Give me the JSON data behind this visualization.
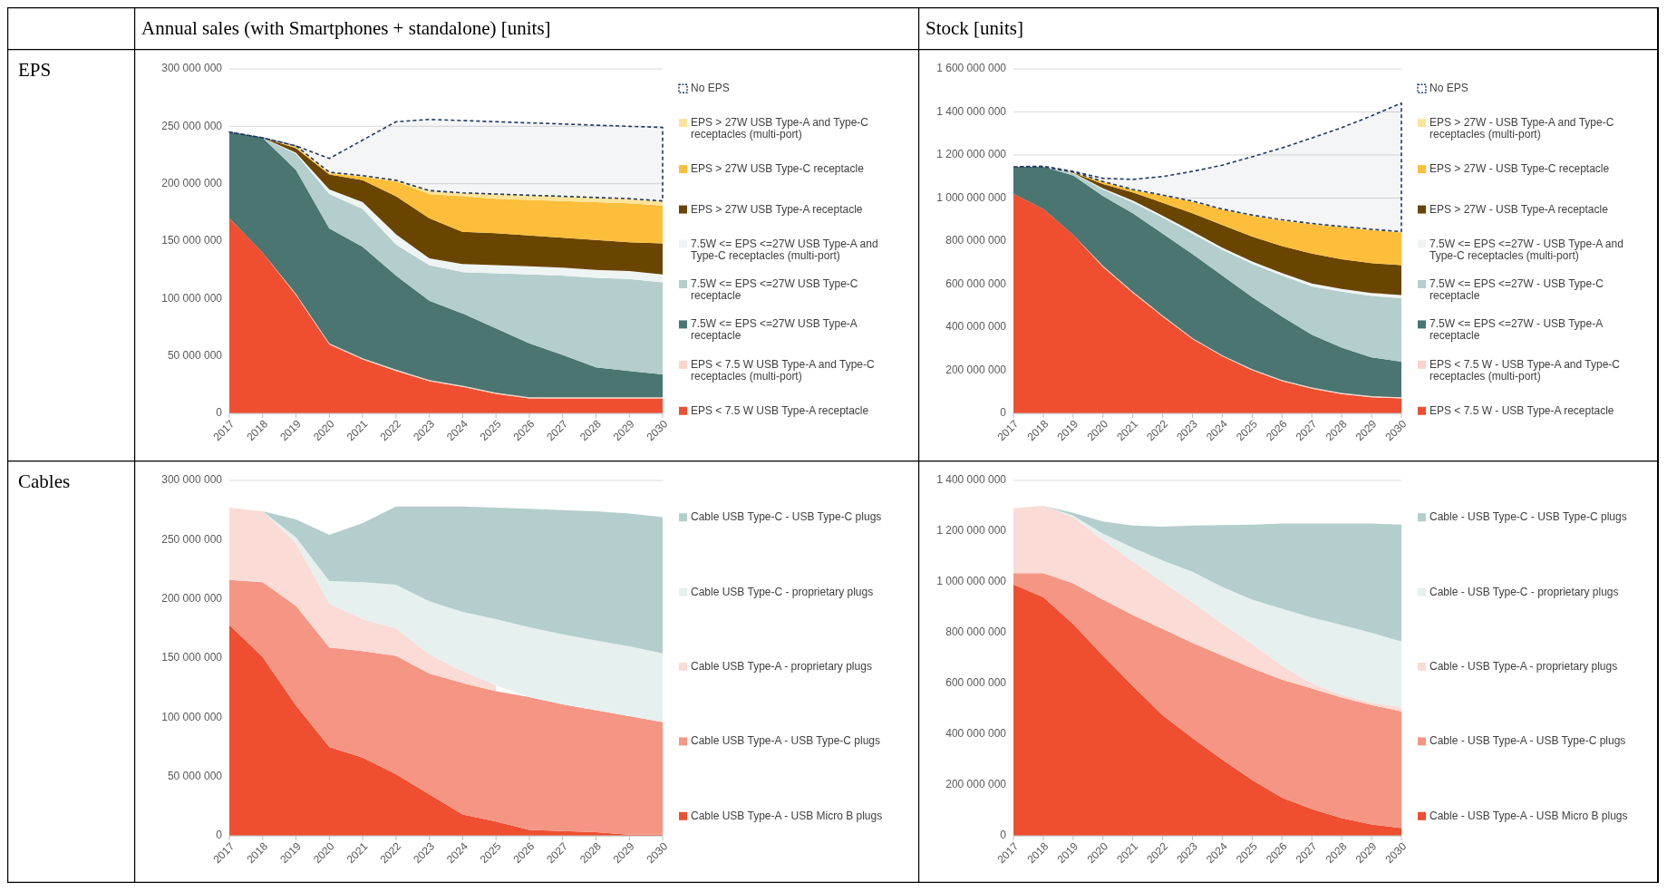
{
  "chart_data": [
    {
      "type": "area",
      "stacked": true,
      "title": "Annual sales (with Smartphones + standalone) [units]",
      "subtitle": "EPS",
      "categories": [
        "2017",
        "2018",
        "2019",
        "2020",
        "2021",
        "2022",
        "2023",
        "2024",
        "2025",
        "2026",
        "2027",
        "2028",
        "2029",
        "2030"
      ],
      "ylim": [
        0,
        300000000.0
      ],
      "yticks": [
        {
          "value": 0,
          "label": "0"
        },
        {
          "value": 50000000.0,
          "label": "50 000 000"
        },
        {
          "value": 100000000.0,
          "label": "100 000 000"
        },
        {
          "value": 150000000.0,
          "label": "150 000 000"
        },
        {
          "value": 200000000.0,
          "label": "200 000 000"
        },
        {
          "value": 250000000.0,
          "label": "250 000 000"
        },
        {
          "value": 300000000.0,
          "label": "300 000 000"
        }
      ],
      "grid": "y",
      "legend": "right",
      "series": [
        {
          "name": "EPS < 7.5 W USB Type-A receptacle",
          "color": "#ef4f30",
          "values": [
            170000000.0,
            140000000.0,
            103000000.0,
            60000000.0,
            47000000.0,
            37000000.0,
            28000000.0,
            23000000.0,
            17000000.0,
            13000000.0,
            13000000.0,
            13000000.0,
            13000000.0,
            13000000.0
          ]
        },
        {
          "name": "EPS < 7.5 W USB Type-A and Type-C receptacles (multi-port)",
          "color": "#fbd3cb",
          "values": [
            0,
            0,
            1000000.0,
            1000000.0,
            1000000.0,
            1000000.0,
            1000000.0,
            1000000.0,
            1000000.0,
            1000000.0,
            1000000.0,
            1000000.0,
            1000000.0,
            1000000.0
          ]
        },
        {
          "name": "7.5W <= EPS <=27W USB Type-A receptacle",
          "color": "#4a7571",
          "values": [
            75000000.0,
            100000000.0,
            108000000.0,
            100000000.0,
            97000000.0,
            82000000.0,
            69000000.0,
            63000000.0,
            56000000.0,
            47000000.0,
            37000000.0,
            26000000.0,
            23000000.0,
            20000000.0
          ]
        },
        {
          "name": "7.5W <= EPS <=27W USB Type-C receptacle",
          "color": "#b3cecc",
          "values": [
            0,
            0,
            14000000.0,
            30000000.0,
            33000000.0,
            27000000.0,
            31000000.0,
            36000000.0,
            48000000.0,
            60000000.0,
            69000000.0,
            78000000.0,
            80000000.0,
            80000000.0
          ]
        },
        {
          "name": "7.5W <= EPS <=27W USB Type-A and Type-C receptacles (multi-port)",
          "color": "#eef4f3",
          "values": [
            0,
            0,
            1000000.0,
            4000000.0,
            6000000.0,
            9000000.0,
            6000000.0,
            7000000.0,
            7000000.0,
            7000000.0,
            7000000.0,
            7000000.0,
            7000000.0,
            7000000.0
          ]
        },
        {
          "name": "EPS > 27W USB Type-A receptacle",
          "color": "#6a4500",
          "values": [
            0,
            0,
            4000000.0,
            13000000.0,
            19000000.0,
            33000000.0,
            35000000.0,
            28000000.0,
            28000000.0,
            27000000.0,
            26000000.0,
            26000000.0,
            25000000.0,
            27000000.0
          ]
        },
        {
          "name": "EPS > 27W USB Type-C receptacle",
          "color": "#fdbe3b",
          "values": [
            0,
            0,
            1000000.0,
            1000000.0,
            3000000.0,
            13000000.0,
            21000000.0,
            31000000.0,
            30000000.0,
            31000000.0,
            32000000.0,
            33000000.0,
            34000000.0,
            33000000.0
          ]
        },
        {
          "name": "EPS > 27W USB Type-A and Type-C receptacles (multi-port)",
          "color": "#fde49a",
          "values": [
            0,
            0,
            1000000.0,
            1000000.0,
            1000000.0,
            1000000.0,
            3000000.0,
            3000000.0,
            4000000.0,
            4000000.0,
            4000000.0,
            4000000.0,
            4000000.0,
            4000000.0
          ]
        },
        {
          "name": "No EPS",
          "color": "#1f3864",
          "line_style": "dashed",
          "values": [
            0,
            0,
            0,
            12000000.0,
            31000000.0,
            51000000.0,
            62000000.0,
            63000000.0,
            63000000.0,
            63000000.0,
            63000000.0,
            63000000.0,
            63000000.0,
            64000000.0
          ]
        }
      ]
    },
    {
      "type": "area",
      "stacked": true,
      "title": "Stock [units]",
      "categories": [
        "2017",
        "2018",
        "2019",
        "2020",
        "2021",
        "2022",
        "2023",
        "2024",
        "2025",
        "2026",
        "2027",
        "2028",
        "2029",
        "2030"
      ],
      "ylim": [
        0,
        1600000000.0
      ],
      "yticks": [
        {
          "value": 0,
          "label": "0"
        },
        {
          "value": 200000000.0,
          "label": "200 000 000"
        },
        {
          "value": 400000000.0,
          "label": "400 000 000"
        },
        {
          "value": 600000000.0,
          "label": "600 000 000"
        },
        {
          "value": 800000000.0,
          "label": "800 000 000"
        },
        {
          "value": 1000000000.0,
          "label": "1 000 000 000"
        },
        {
          "value": 1200000000.0,
          "label": "1 200 000 000"
        },
        {
          "value": 1400000000.0,
          "label": "1 400 000 000"
        },
        {
          "value": 1600000000.0,
          "label": "1 600 000 000"
        }
      ],
      "grid": "y",
      "legend": "right",
      "series": [
        {
          "name": "EPS < 7.5 W - USB Type-A receptacle",
          "color": "#ef4f30",
          "values": [
            1020000000.0,
            950000000.0,
            830000000.0,
            680000000.0,
            560000000.0,
            450000000.0,
            345000000.0,
            265000000.0,
            200000000.0,
            150000000.0,
            115000000.0,
            90000000.0,
            75000000.0,
            70000000.0
          ]
        },
        {
          "name": "EPS < 7.5 W - USB Type-A and Type-C receptacles (multi-port)",
          "color": "#fbd3cb",
          "values": [
            0,
            0,
            0,
            5000000.0,
            5000000.0,
            5000000.0,
            5000000.0,
            5000000.0,
            5000000.0,
            5000000.0,
            5000000.0,
            5000000.0,
            5000000.0,
            5000000.0
          ]
        },
        {
          "name": "7.5W <= EPS <=27W - USB Type-A receptacle",
          "color": "#4a7571",
          "values": [
            125000000.0,
            195000000.0,
            275000000.0,
            325000000.0,
            365000000.0,
            380000000.0,
            390000000.0,
            370000000.0,
            335000000.0,
            295000000.0,
            245000000.0,
            210000000.0,
            180000000.0,
            165000000.0
          ]
        },
        {
          "name": "7.5W <= EPS <=27W - USB Type-C receptacle",
          "color": "#b3cecc",
          "values": [
            0,
            0,
            10000000.0,
            30000000.0,
            50000000.0,
            75000000.0,
            95000000.0,
            120000000.0,
            155000000.0,
            190000000.0,
            225000000.0,
            260000000.0,
            285000000.0,
            295000000.0
          ]
        },
        {
          "name": "7.5W <= EPS <=27W - USB Type-A and Type-C receptacles (multi-port)",
          "color": "#eef4f3",
          "values": [
            0,
            0,
            2000000.0,
            5000000.0,
            8000000.0,
            8000000.0,
            10000000.0,
            10000000.0,
            10000000.0,
            12000000.0,
            13000000.0,
            13000000.0,
            14000000.0,
            15000000.0
          ]
        },
        {
          "name": "EPS > 27W - USB Type-A receptacle",
          "color": "#6a4500",
          "values": [
            0,
            0,
            1000000.0,
            20000000.0,
            38000000.0,
            60000000.0,
            85000000.0,
            105000000.0,
            116000000.0,
            125000000.0,
            139000000.0,
            138000000.0,
            139000000.0,
            138000000.0
          ]
        },
        {
          "name": "EPS > 27W - USB Type-C receptacle",
          "color": "#fdbe3b",
          "values": [
            0,
            0,
            2000000.0,
            10000000.0,
            11000000.0,
            33000000.0,
            52000000.0,
            70000000.0,
            96000000.0,
            118000000.0,
            136000000.0,
            148000000.0,
            153000000.0,
            152000000.0
          ]
        },
        {
          "name": "EPS > 27W - USB Type-A and Type-C receptacles (multi-port)",
          "color": "#fde49a",
          "values": [
            0,
            0,
            1000000.0,
            2000000.0,
            3000000.0,
            3000000.0,
            4000000.0,
            4000000.0,
            4000000.0,
            4000000.0,
            4000000.0,
            4000000.0,
            4000000.0,
            4000000.0
          ]
        },
        {
          "name": "No EPS",
          "color": "#1f3864",
          "line_style": "dashed",
          "values": [
            0,
            3000000.0,
            3000000.0,
            15000000.0,
            47000000.0,
            86000000.0,
            138000000.0,
            204000000.0,
            271000000.0,
            334000000.0,
            397000000.0,
            459000000.0,
            527000000.0,
            597000000.0
          ]
        }
      ]
    },
    {
      "type": "area",
      "stacked": true,
      "subtitle": "Cables",
      "categories": [
        "2017",
        "2018",
        "2019",
        "2020",
        "2021",
        "2022",
        "2023",
        "2024",
        "2025",
        "2026",
        "2027",
        "2028",
        "2029",
        "2030"
      ],
      "ylim": [
        0,
        300000000.0
      ],
      "yticks": [
        {
          "value": 0,
          "label": "0"
        },
        {
          "value": 50000000.0,
          "label": "50 000 000"
        },
        {
          "value": 100000000.0,
          "label": "100 000 000"
        },
        {
          "value": 150000000.0,
          "label": "150 000 000"
        },
        {
          "value": 200000000.0,
          "label": "200 000 000"
        },
        {
          "value": 250000000.0,
          "label": "250 000 000"
        },
        {
          "value": 300000000.0,
          "label": "300 000 000"
        }
      ],
      "grid": "y",
      "legend": "right",
      "series": [
        {
          "name": "Cable USB Type-A - USB Micro B plugs",
          "color": "#ef4f30",
          "values": [
            178000000.0,
            151000000.0,
            110000000.0,
            75000000.0,
            66000000.0,
            52000000.0,
            35000000.0,
            18000000.0,
            12000000.0,
            5000000.0,
            4000000.0,
            3000000.0,
            1000000.0,
            1000000.0
          ]
        },
        {
          "name": "Cable USB Type-A - USB Type-C plugs",
          "color": "#f59684",
          "values": [
            38000000.0,
            63000000.0,
            84000000.0,
            84000000.0,
            90000000.0,
            100000000.0,
            102000000.0,
            111000000.0,
            110000000.0,
            112000000.0,
            107000000.0,
            103000000.0,
            100000000.0,
            95000000.0
          ]
        },
        {
          "name": "Cable USB Type-A - proprietary plugs",
          "color": "#fadbd5",
          "values": [
            61000000.0,
            60000000.0,
            53000000.0,
            37000000.0,
            27000000.0,
            23000000.0,
            16000000.0,
            10000000.0,
            5000000.0,
            null,
            null,
            null,
            null,
            null
          ]
        },
        {
          "name": "Cable USB Type-C - proprietary plugs",
          "color": "#e6f0ef",
          "values": [
            0,
            0,
            5000000.0,
            19000000.0,
            31000000.0,
            37000000.0,
            45000000.0,
            50000000.0,
            56000000.0,
            59000000.0,
            59000000.0,
            59000000.0,
            59000000.0,
            58000000.0
          ]
        },
        {
          "name": "Cable USB Type-C - USB Type-C plugs",
          "color": "#b3cecc",
          "values": [
            0,
            0,
            15000000.0,
            39000000.0,
            50000000.0,
            66000000.0,
            80000000.0,
            89000000.0,
            94000000.0,
            100000000.0,
            105000000.0,
            109000000.0,
            112000000.0,
            115000000.0
          ]
        }
      ]
    },
    {
      "type": "area",
      "stacked": true,
      "categories": [
        "2017",
        "2018",
        "2019",
        "2020",
        "2021",
        "2022",
        "2023",
        "2024",
        "2025",
        "2026",
        "2027",
        "2028",
        "2029",
        "2030"
      ],
      "ylim": [
        0,
        1400000000.0
      ],
      "yticks": [
        {
          "value": 0,
          "label": "0"
        },
        {
          "value": 200000000.0,
          "label": "200 000 000"
        },
        {
          "value": 400000000.0,
          "label": "400 000 000"
        },
        {
          "value": 600000000.0,
          "label": "600 000 000"
        },
        {
          "value": 800000000.0,
          "label": "800 000 000"
        },
        {
          "value": 1000000000.0,
          "label": "1 000 000 000"
        },
        {
          "value": 1200000000.0,
          "label": "1 200 000 000"
        },
        {
          "value": 1400000000.0,
          "label": "1 400 000 000"
        }
      ],
      "grid": "y",
      "legend": "right",
      "series": [
        {
          "name": "Cable - USB Type-A - USB Micro B plugs",
          "color": "#ef4f30",
          "values": [
            990000000.0,
            940000000.0,
            835000000.0,
            710000000.0,
            590000000.0,
            475000000.0,
            385000000.0,
            300000000.0,
            220000000.0,
            150000000.0,
            105000000.0,
            70000000.0,
            45000000.0,
            30000000.0
          ]
        },
        {
          "name": "Cable - USB Type-A - USB Type-C plugs",
          "color": "#f59684",
          "values": [
            45000000.0,
            95000000.0,
            160000000.0,
            220000000.0,
            280000000.0,
            340000000.0,
            375000000.0,
            410000000.0,
            440000000.0,
            465000000.0,
            475000000.0,
            475000000.0,
            470000000.0,
            460000000.0
          ]
        },
        {
          "name": "Cable - USB Type-A - proprietary plugs",
          "color": "#fadbd5",
          "values": [
            255000000.0,
            265000000.0,
            260000000.0,
            235000000.0,
            210000000.0,
            185000000.0,
            160000000.0,
            125000000.0,
            95000000.0,
            55000000.0,
            20000000.0,
            10000000.0,
            10000000.0,
            15000000.0
          ]
        },
        {
          "name": "Cable - USB Type-C - proprietary plugs",
          "color": "#e6f0ef",
          "values": [
            0,
            0,
            7000000.0,
            25000000.0,
            55000000.0,
            85000000.0,
            120000000.0,
            145000000.0,
            175000000.0,
            225000000.0,
            260000000.0,
            275000000.0,
            275000000.0,
            260000000.0
          ]
        },
        {
          "name": "Cable - USB Type-C - USB Type-C plugs",
          "color": "#b3cecc",
          "values": [
            0,
            0,
            10000000.0,
            48000000.0,
            87000000.0,
            133000000.0,
            182000000.0,
            244000000.0,
            296000000.0,
            335000000.0,
            370000000.0,
            400000000.0,
            430000000.0,
            461000000.0
          ]
        }
      ]
    }
  ]
}
